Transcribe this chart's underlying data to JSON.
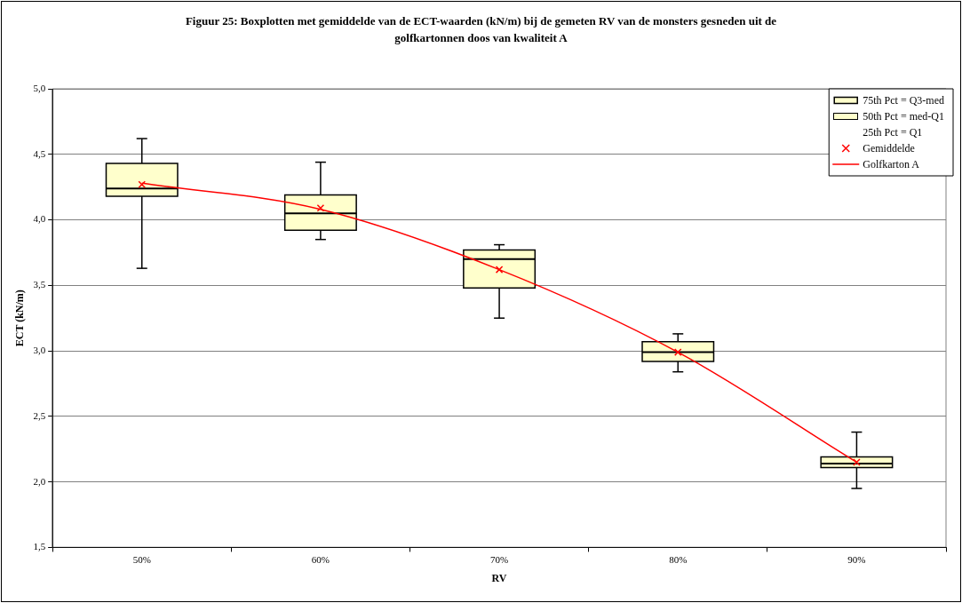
{
  "chart_data": {
    "type": "box",
    "title": "Figuur 25: Boxplotten met gemiddelde van de ECT-waarden (kN/m) bij de gemeten RV van de monsters gesneden uit de golfkartonnen doos van kwaliteit A",
    "xlabel": "RV",
    "ylabel": "ECT (kN/m)",
    "categories": [
      "50%",
      "60%",
      "70%",
      "80%",
      "90%"
    ],
    "grid": "y",
    "legend": "top right",
    "ylim": [
      1.5,
      5.0
    ],
    "yticks": [
      {
        "value": 1.5,
        "label": "1,5"
      },
      {
        "value": 2.0,
        "label": "2,0"
      },
      {
        "value": 2.5,
        "label": "2,5"
      },
      {
        "value": 3.0,
        "label": "3,0"
      },
      {
        "value": 3.5,
        "label": "3,5"
      },
      {
        "value": 4.0,
        "label": "4,0"
      },
      {
        "value": 4.5,
        "label": "4,5"
      },
      {
        "value": 5.0,
        "label": "5,0"
      }
    ],
    "annotations": [
      "50th Pct = med-Q1",
      "25th Pct = Q1"
    ],
    "series": [
      {
        "name": "75th Pct = Q3-med",
        "color": "#ffffcc",
        "boxes": [
          {
            "low": 3.63,
            "q1": 4.18,
            "median": 4.24,
            "q3": 4.43,
            "high": 4.62
          },
          {
            "low": 3.85,
            "q1": 3.92,
            "median": 4.05,
            "q3": 4.19,
            "high": 4.44
          },
          {
            "low": 3.25,
            "q1": 3.48,
            "median": 3.7,
            "q3": 3.77,
            "high": 3.81
          },
          {
            "low": 2.84,
            "q1": 2.92,
            "median": 2.99,
            "q3": 3.07,
            "high": 3.13
          },
          {
            "low": 1.95,
            "q1": 2.11,
            "median": 2.14,
            "q3": 2.19,
            "high": 2.38
          }
        ]
      },
      {
        "name": "Gemiddelde",
        "type": "scatter",
        "color": "#ff0000",
        "marker": "cross",
        "x": [
          "50%",
          "60%",
          "70%",
          "80%",
          "90%"
        ],
        "values": [
          4.27,
          4.09,
          3.62,
          2.99,
          2.15
        ]
      },
      {
        "name": "Golfkarton A",
        "type": "line",
        "color": "#ff0000",
        "marker": "none",
        "values": [
          4.28,
          4.08,
          3.62,
          2.99,
          2.15
        ]
      }
    ]
  }
}
